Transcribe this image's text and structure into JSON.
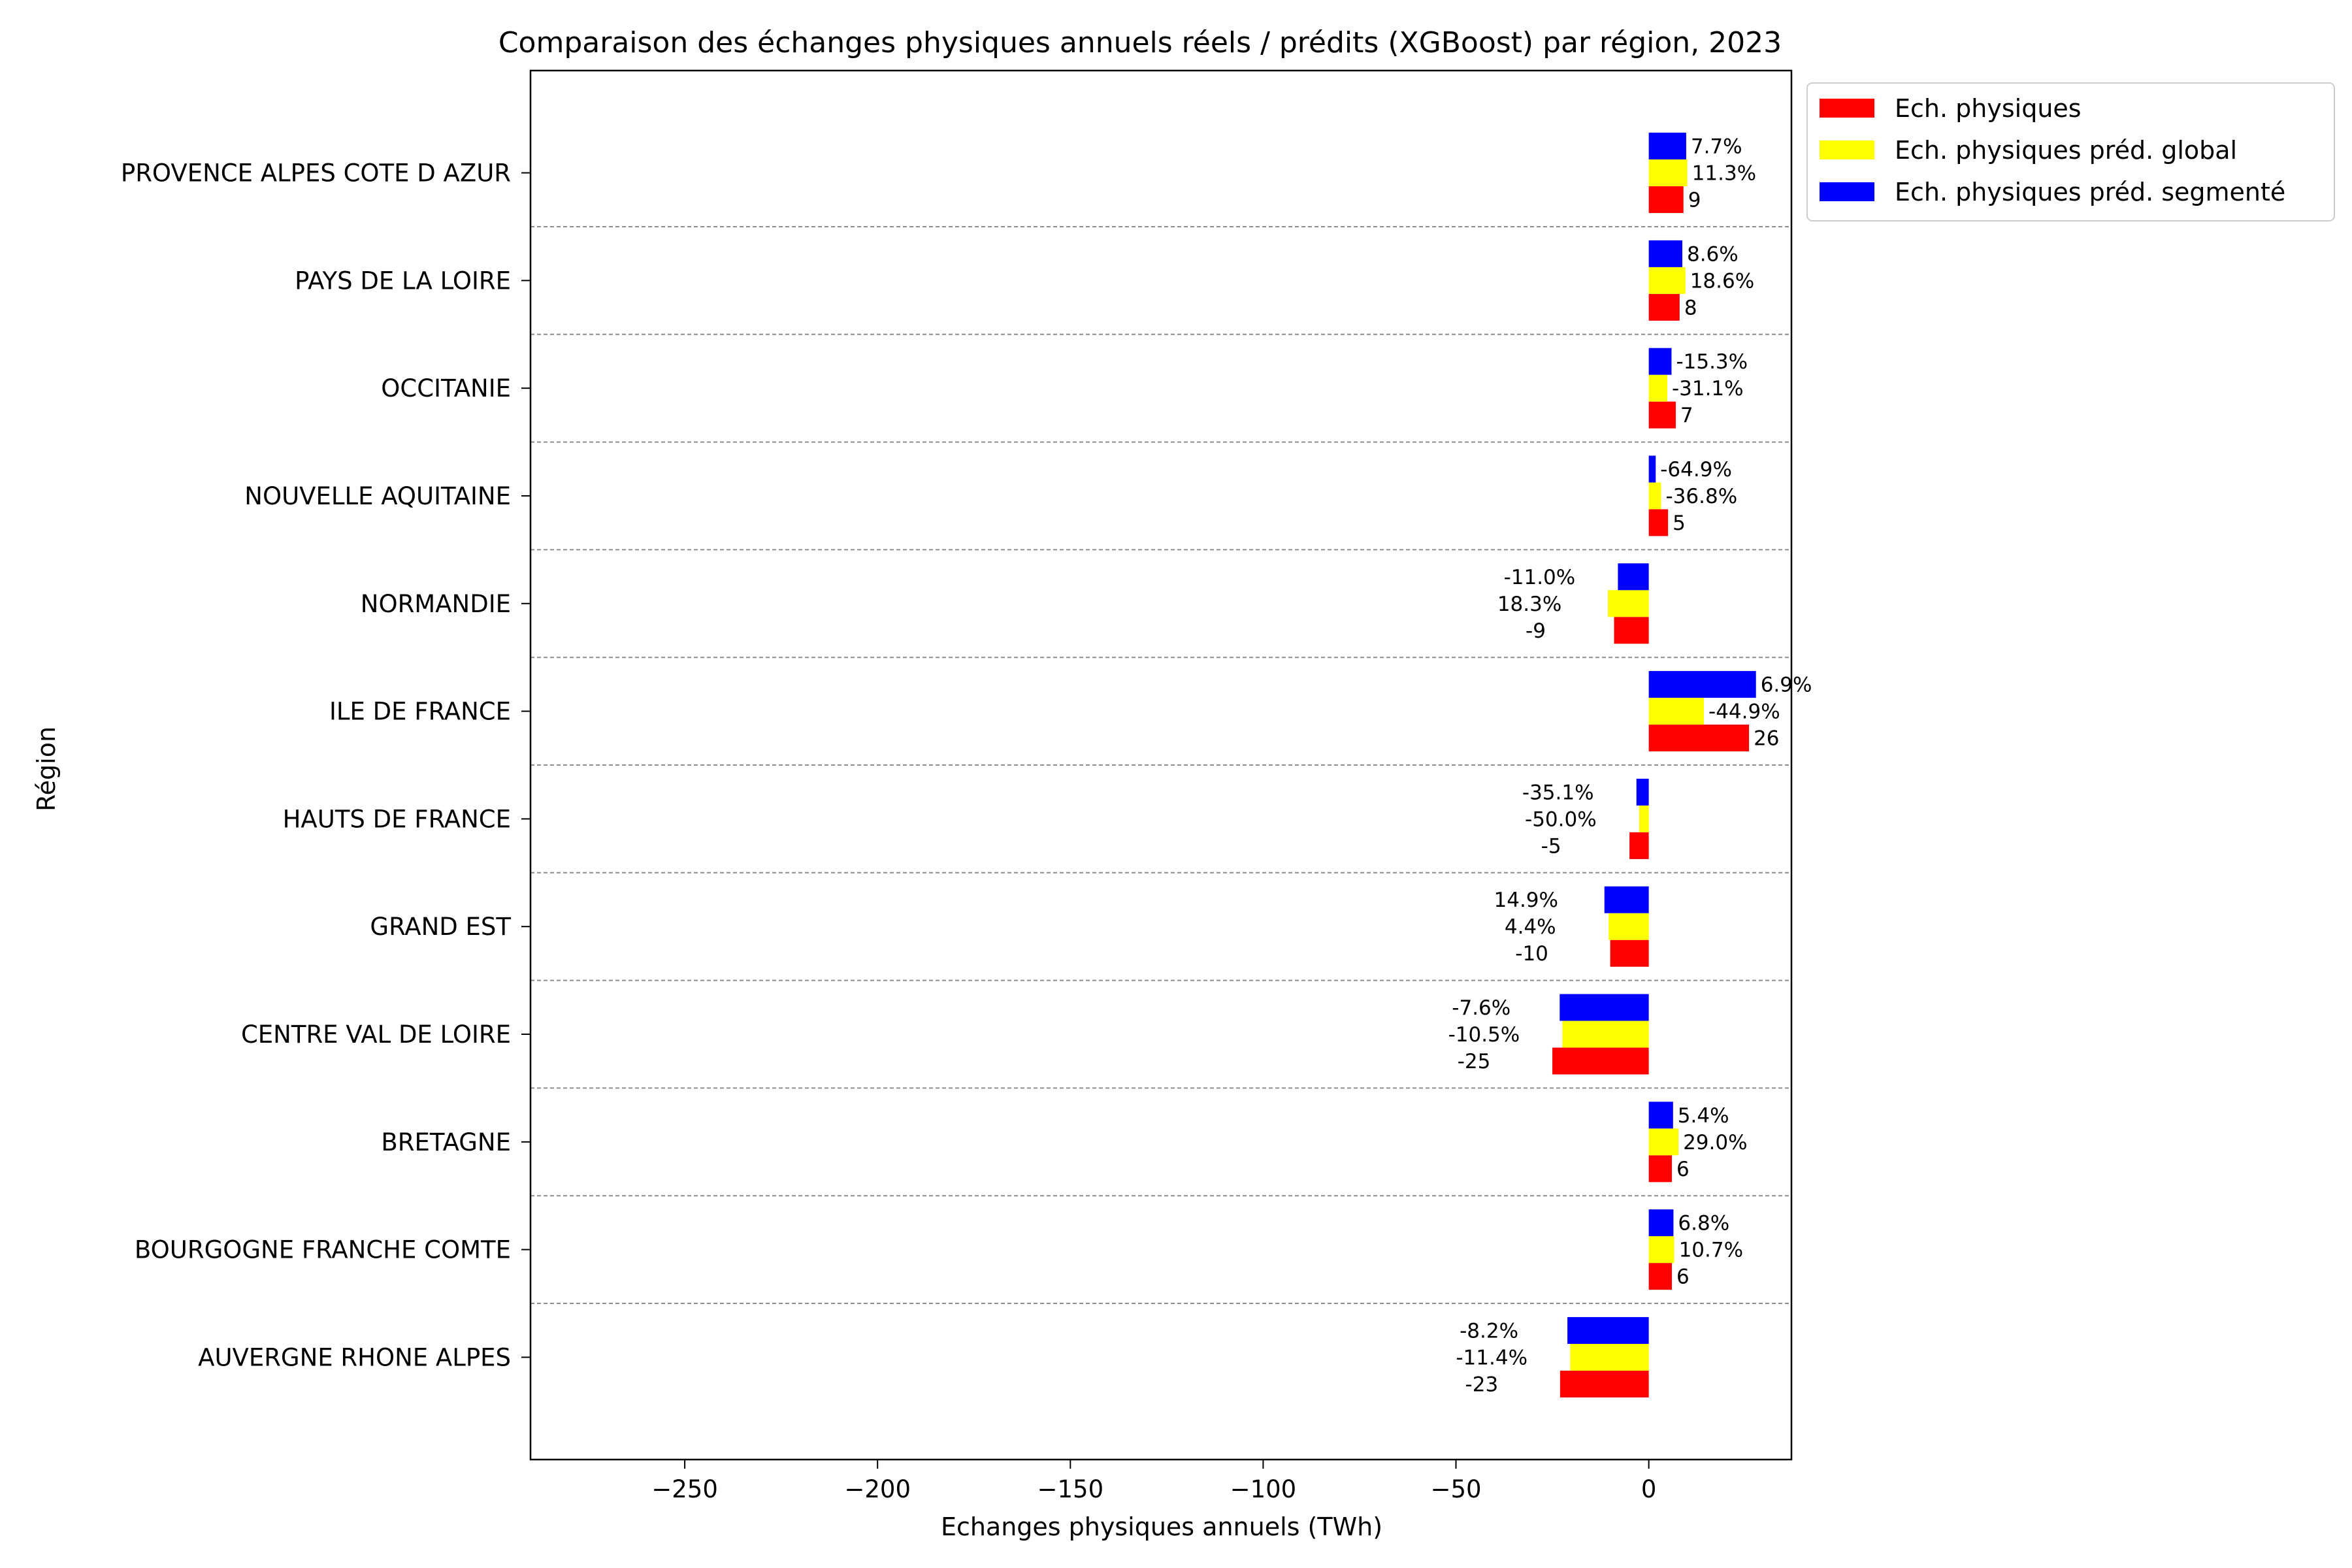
{
  "chart_data": {
    "type": "bar",
    "orientation": "horizontal",
    "title": "Comparaison des échanges physiques annuels réels / prédits (XGBoost) par région, 2023",
    "xlabel": "Echanges physiques annuels (TWh)",
    "ylabel": "Région",
    "xlim": [
      -290,
      37
    ],
    "xticks": [
      -250,
      -200,
      -150,
      -100,
      -50,
      0
    ],
    "xtick_labels": [
      "−250",
      "−200",
      "−150",
      "−100",
      "−50",
      "0"
    ],
    "grid": "horizontal dashed separators between regions",
    "legend_position": "outside top-right",
    "categories": [
      "PROVENCE ALPES COTE D AZUR",
      "PAYS DE LA LOIRE",
      "OCCITANIE",
      "NOUVELLE AQUITAINE",
      "NORMANDIE",
      "ILE DE FRANCE",
      "HAUTS DE FRANCE",
      "GRAND EST",
      "CENTRE VAL DE LOIRE",
      "BRETAGNE",
      "BOURGOGNE FRANCHE COMTE",
      "AUVERGNE RHONE ALPES"
    ],
    "series": [
      {
        "name": "Ech. physiques",
        "color": "#ff0000",
        "values": [
          9,
          8,
          7,
          5,
          -9,
          26,
          -5,
          -10,
          -25,
          6,
          6,
          -23
        ],
        "labels": [
          "9",
          "8",
          "7",
          "5",
          "-9",
          "26",
          "-5",
          "-10",
          "-25",
          "6",
          "6",
          "-23"
        ]
      },
      {
        "name": "Ech. physiques préd. global",
        "color": "#ffff00",
        "values": [
          10,
          9.5,
          4.8,
          3.2,
          -10.6,
          14.3,
          -2.5,
          -10.4,
          -22.4,
          7.7,
          6.6,
          -20.4
        ],
        "labels": [
          "11.3%",
          "18.6%",
          "-31.1%",
          "-36.8%",
          "18.3%",
          "-44.9%",
          "-50.0%",
          "4.4%",
          "-10.5%",
          "29.0%",
          "10.7%",
          "-11.4%"
        ]
      },
      {
        "name": "Ech. physiques préd. segmenté",
        "color": "#0000ff",
        "values": [
          9.7,
          8.7,
          5.9,
          1.8,
          -8,
          27.8,
          -3.2,
          -11.5,
          -23.1,
          6.3,
          6.4,
          -21.1
        ],
        "labels": [
          "7.7%",
          "8.6%",
          "-15.3%",
          "-64.9%",
          "-11.0%",
          "6.9%",
          "-35.1%",
          "14.9%",
          "-7.6%",
          "5.4%",
          "6.8%",
          "-8.2%"
        ]
      }
    ]
  }
}
